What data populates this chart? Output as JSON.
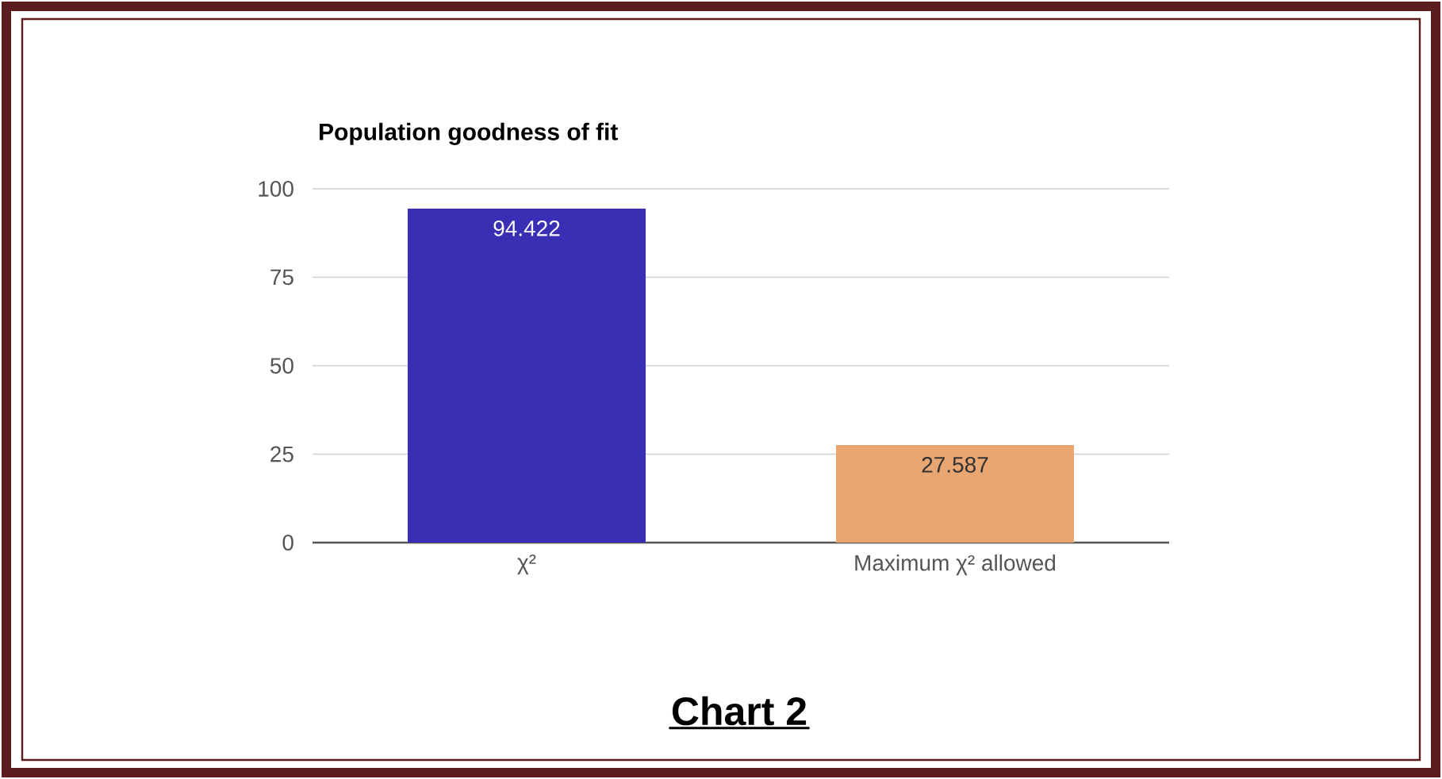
{
  "chart_data": {
    "type": "bar",
    "title": "Population goodness of fit",
    "categories": [
      "χ²",
      "Maximum χ² allowed"
    ],
    "values": [
      94.422,
      27.587
    ],
    "colors": [
      "#3a2fb4",
      "#e8a673"
    ],
    "ylim": [
      0,
      100
    ],
    "yticks": [
      0,
      25,
      50,
      75,
      100
    ],
    "grid": "y",
    "data_labels": true,
    "annotations": [
      "Chart 2"
    ]
  }
}
